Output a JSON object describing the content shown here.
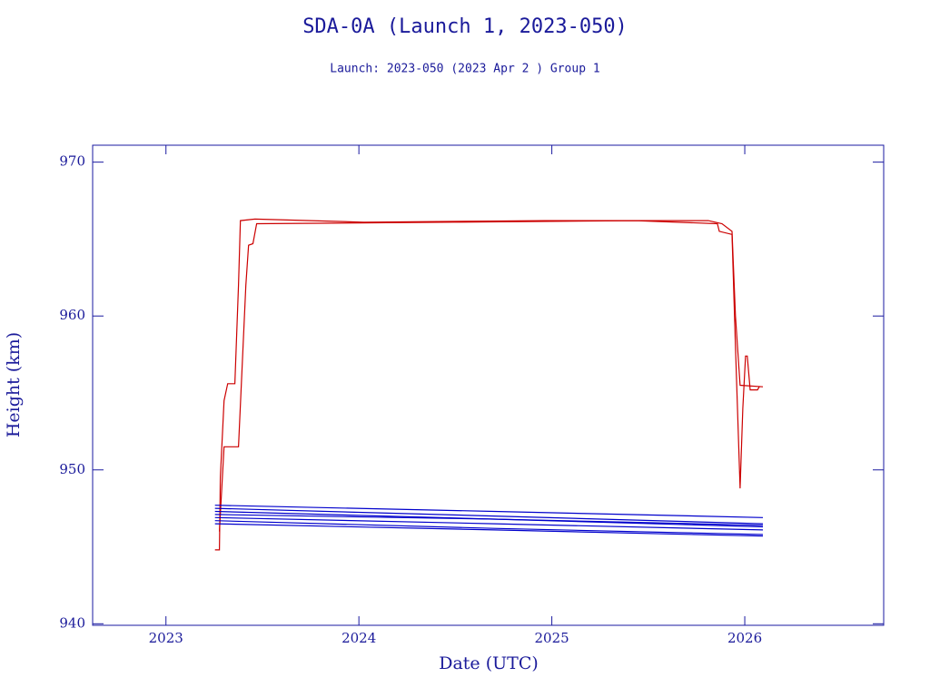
{
  "chart_data": {
    "type": "line",
    "title": "SDA-0A (Launch 1, 2023-050)",
    "subtitle": "Launch: 2023-050  (2023 Apr  2 )  Group 1",
    "x_label": "Date (UTC)",
    "y_label": "Height (km)",
    "xlim": [
      2022.62,
      2026.72
    ],
    "xticks": [
      2023,
      2024,
      2025,
      2026
    ],
    "ylim": [
      939.9,
      971.1
    ],
    "yticks": [
      940,
      950,
      960,
      970
    ],
    "axis_color": "#1a1aa0",
    "series": [
      {
        "color": "#cc0000",
        "x": [
          2023.254,
          2023.277,
          2023.282,
          2023.301,
          2023.32,
          2023.357,
          2023.376,
          2023.386,
          2023.461,
          2024.025,
          2024.965,
          2025.811,
          2025.882,
          2025.934,
          2025.952,
          2025.976,
          2026.094
        ],
        "values": [
          944.8,
          944.8,
          949.5,
          954.5,
          955.6,
          955.6,
          962.0,
          966.2,
          966.3,
          966.1,
          966.2,
          966.2,
          966.0,
          965.5,
          960.0,
          955.5,
          955.4
        ]
      },
      {
        "color": "#cc0000",
        "x": [
          2023.277,
          2023.301,
          2023.376,
          2023.414,
          2023.428,
          2023.451,
          2023.47,
          2024.495,
          2025.435,
          2025.858,
          2025.868,
          2025.934,
          2025.952,
          2025.976,
          2025.99,
          2026.004,
          2026.013,
          2026.028,
          2026.066,
          2026.075
        ],
        "values": [
          946.0,
          951.5,
          951.5,
          962.0,
          964.6,
          964.7,
          966.0,
          966.1,
          966.2,
          966.0,
          965.5,
          965.3,
          958.0,
          948.8,
          954.0,
          957.4,
          957.4,
          955.2,
          955.2,
          955.4
        ]
      },
      {
        "color": "#0000cc",
        "x": [
          2023.254,
          2024.7,
          2026.094
        ],
        "values": [
          947.7,
          947.3,
          946.9
        ]
      },
      {
        "color": "#0000cc",
        "x": [
          2023.254,
          2024.7,
          2026.094
        ],
        "values": [
          947.5,
          947.0,
          946.5
        ]
      },
      {
        "color": "#0000cc",
        "x": [
          2023.254,
          2024.7,
          2026.094
        ],
        "values": [
          947.3,
          946.8,
          946.3
        ]
      },
      {
        "color": "#0000cc",
        "x": [
          2023.254,
          2024.7,
          2026.094
        ],
        "values": [
          947.1,
          946.8,
          946.4
        ]
      },
      {
        "color": "#0000cc",
        "x": [
          2023.254,
          2024.7,
          2026.094
        ],
        "values": [
          946.9,
          946.5,
          946.1
        ]
      },
      {
        "color": "#0000cc",
        "x": [
          2023.254,
          2024.7,
          2026.094
        ],
        "values": [
          946.7,
          946.2,
          945.8
        ]
      },
      {
        "color": "#0000cc",
        "x": [
          2023.254,
          2024.7,
          2026.094
        ],
        "values": [
          946.5,
          946.1,
          945.7
        ]
      }
    ]
  }
}
